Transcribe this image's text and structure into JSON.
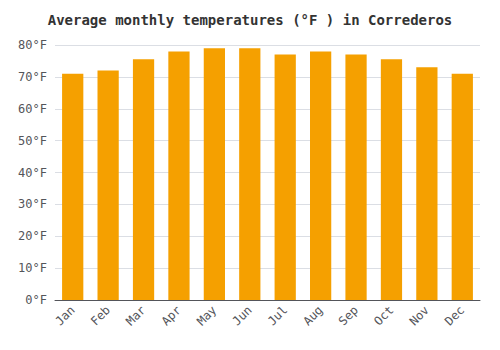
{
  "chart_data": {
    "type": "bar",
    "title": "Average monthly temperatures (°F ) in Correderos",
    "categories": [
      "Jan",
      "Feb",
      "Mar",
      "Apr",
      "May",
      "Jun",
      "Jul",
      "Aug",
      "Sep",
      "Oct",
      "Nov",
      "Dec"
    ],
    "values": [
      71,
      72,
      75.5,
      78,
      79,
      79,
      77,
      78,
      77,
      75.5,
      73,
      71
    ],
    "color": "#F5A000",
    "ylim": [
      0,
      80
    ],
    "yticks": [
      {
        "value": 0,
        "label": "0°F"
      },
      {
        "value": 10,
        "label": "10°F"
      },
      {
        "value": 20,
        "label": "20°F"
      },
      {
        "value": 30,
        "label": "30°F"
      },
      {
        "value": 40,
        "label": "40°F"
      },
      {
        "value": 50,
        "label": "50°F"
      },
      {
        "value": 60,
        "label": "60°F"
      },
      {
        "value": 70,
        "label": "70°F"
      },
      {
        "value": 80,
        "label": "80°F"
      }
    ],
    "grid": true
  }
}
